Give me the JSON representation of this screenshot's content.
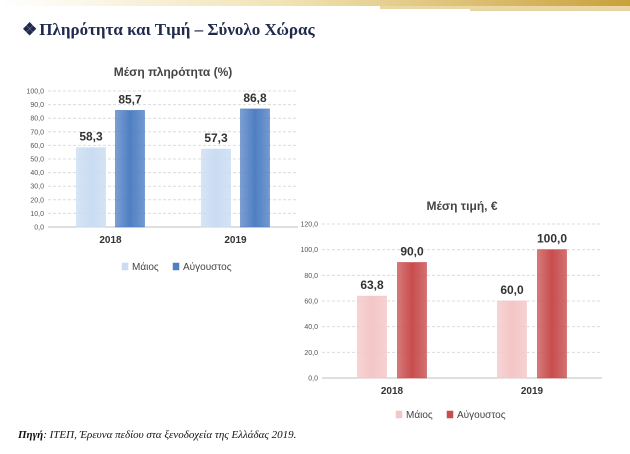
{
  "header": {
    "bullet": "❖",
    "title": "Πληρότητα και Τιμή – Σύνολο Χώρας"
  },
  "source": {
    "label": "Πηγή",
    "text": ": ΙΤΕΠ, Έρευνα πεδίου στα ξενοδοχεία της Ελλάδας 2019."
  },
  "colors": {
    "may": "#c9dcf2",
    "august": "#4f7fc3",
    "may_price": "#f4c6c6",
    "august_price": "#c84d4d"
  },
  "chart_data": [
    {
      "type": "bar",
      "title": "Μέση πληρότητα (%)",
      "categories": [
        "2018",
        "2019"
      ],
      "series": [
        {
          "name": "Μάιος",
          "values": [
            58.3,
            57.3
          ],
          "labels": [
            "58,3",
            "57,3"
          ]
        },
        {
          "name": "Αύγουστος",
          "values": [
            85.7,
            86.8
          ],
          "labels": [
            "85,7",
            "86,8"
          ]
        }
      ],
      "ylim": [
        0,
        100
      ],
      "yticks": [
        "0,0",
        "10,0",
        "20,0",
        "30,0",
        "40,0",
        "50,0",
        "60,0",
        "70,0",
        "80,0",
        "90,0",
        "100,0"
      ],
      "grid": true,
      "legend": "bottom"
    },
    {
      "type": "bar",
      "title": "Μέση τιμή, €",
      "categories": [
        "2018",
        "2019"
      ],
      "series": [
        {
          "name": "Μάιος",
          "values": [
            63.8,
            60.0
          ],
          "labels": [
            "63,8",
            "60,0"
          ]
        },
        {
          "name": "Αύγουστος",
          "values": [
            90.0,
            100.0
          ],
          "labels": [
            "90,0",
            "100,0"
          ]
        }
      ],
      "ylim": [
        0,
        120
      ],
      "yticks": [
        "0,0",
        "20,0",
        "40,0",
        "60,0",
        "80,0",
        "100,0",
        "120,0"
      ],
      "grid": true,
      "legend": "bottom"
    }
  ]
}
